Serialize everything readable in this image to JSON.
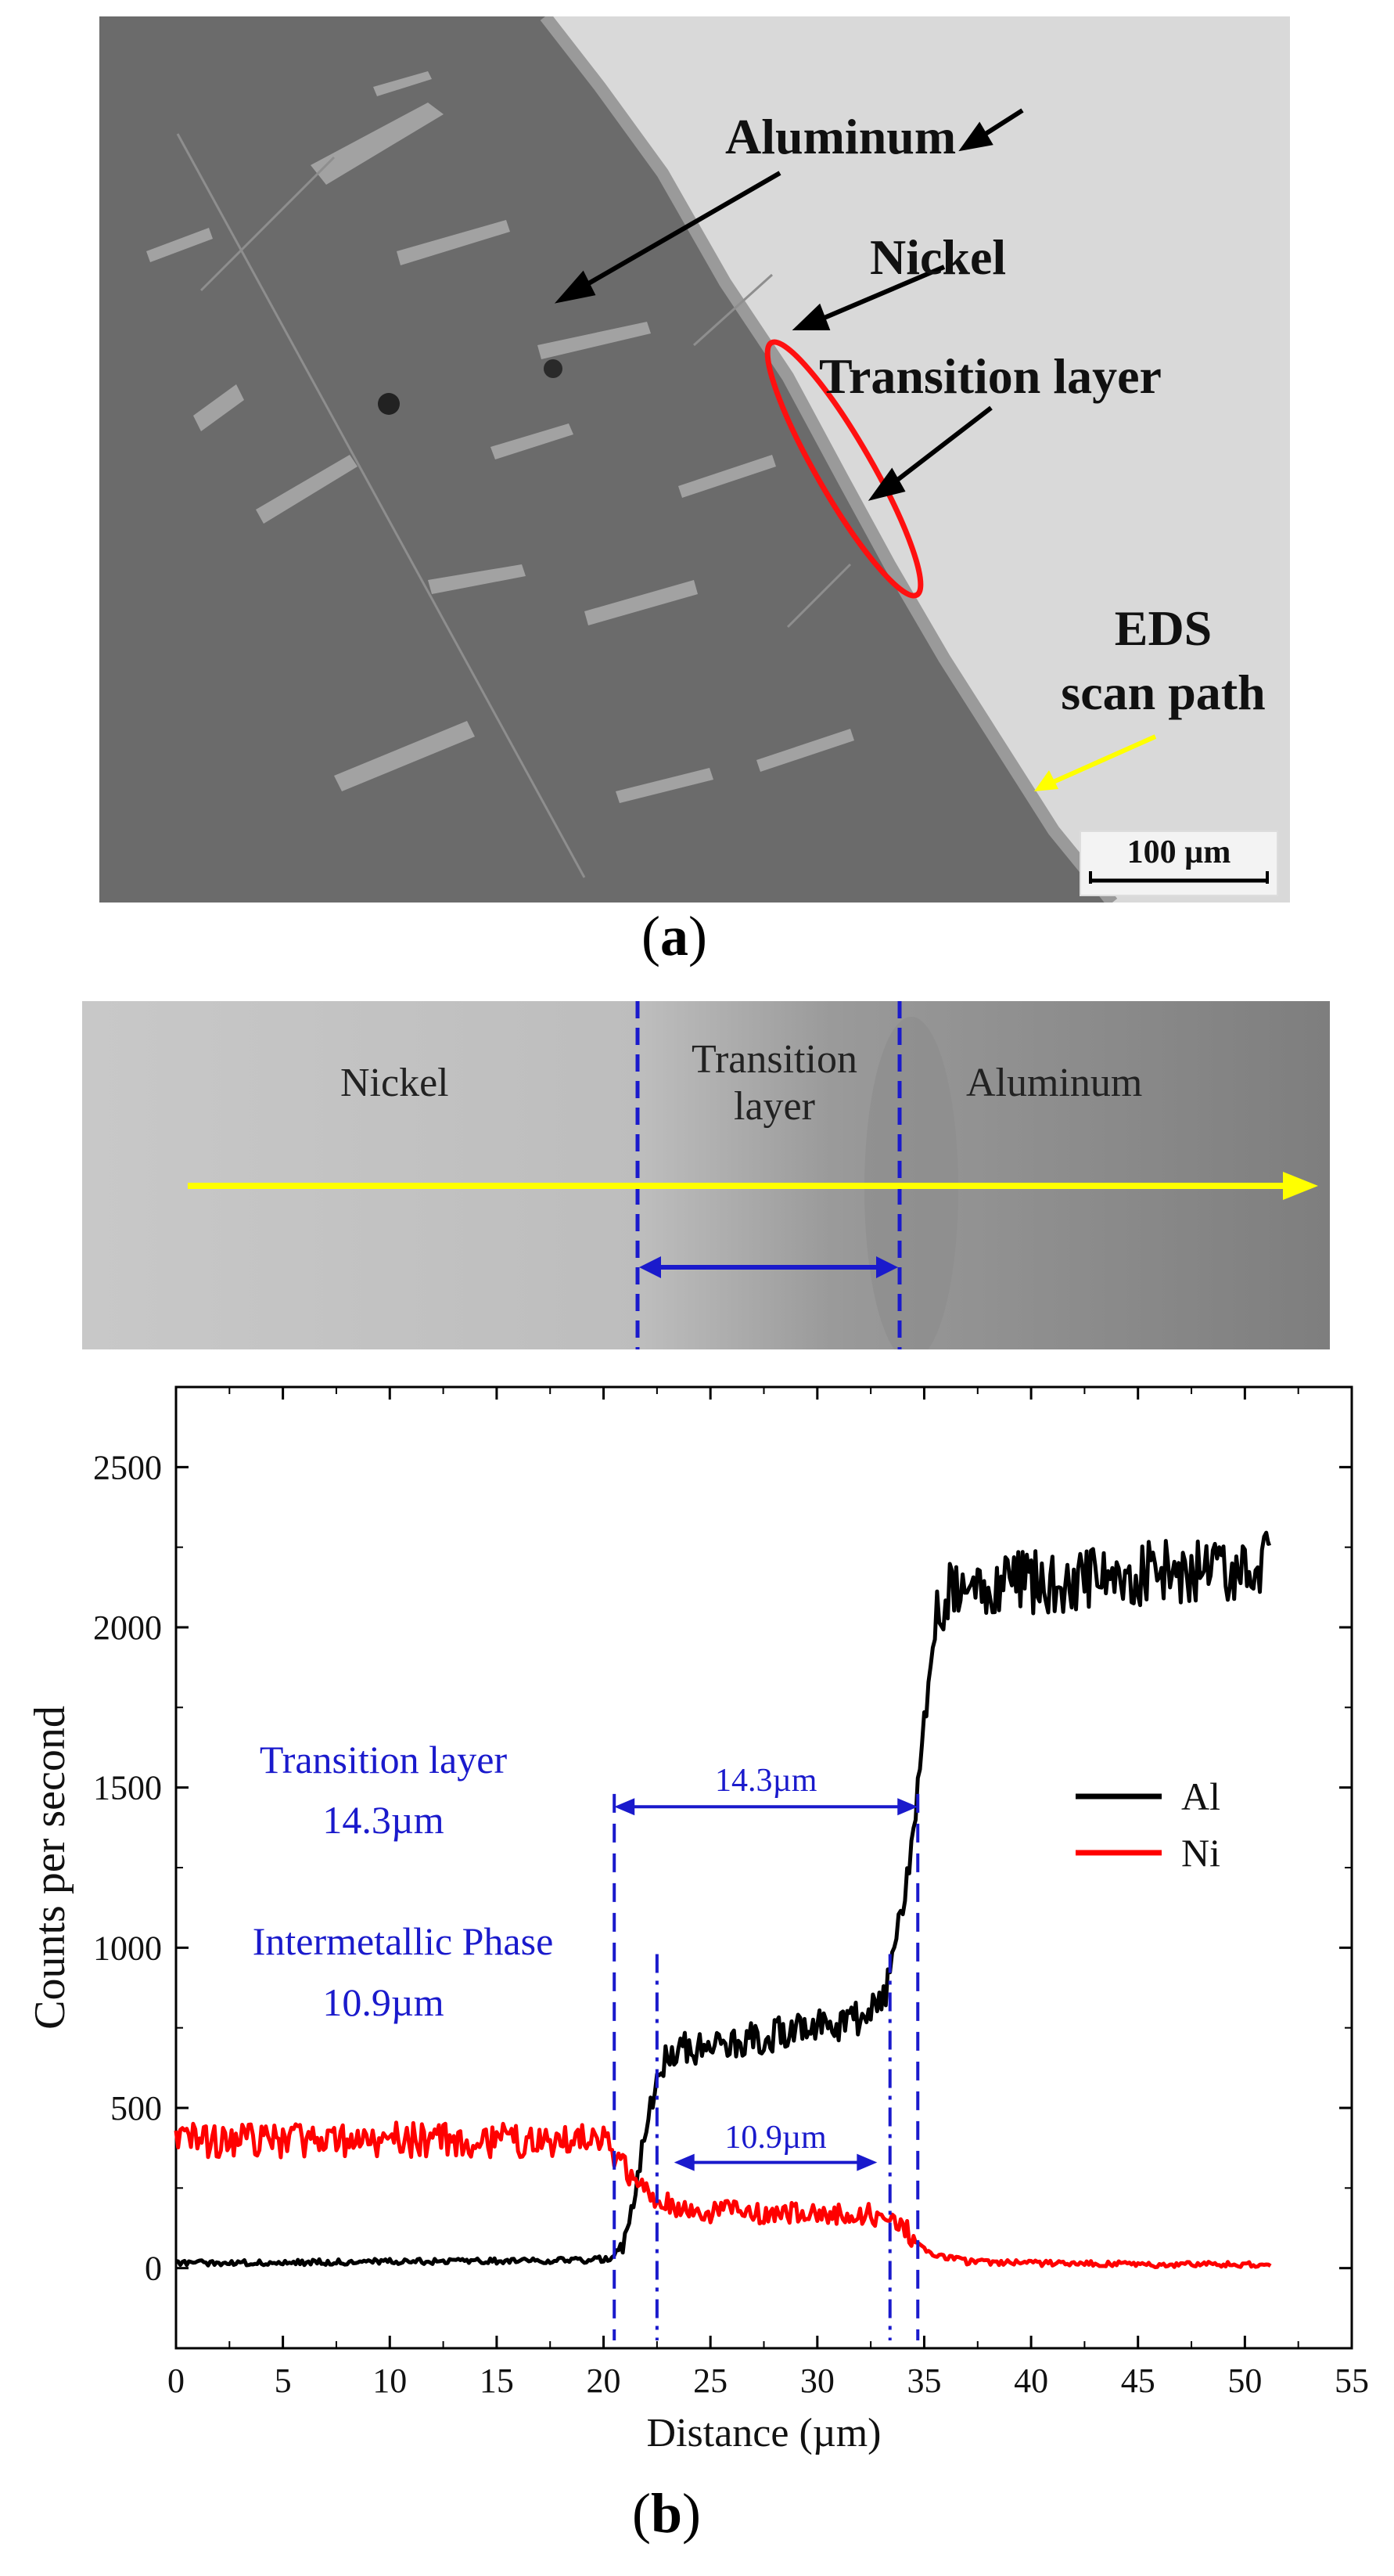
{
  "panel_a": {
    "labels": {
      "aluminum": "Aluminum",
      "nickel": "Nickel",
      "transition_layer": "Transition layer",
      "eds_line1": "EDS",
      "eds_line2": "scan path"
    },
    "scale_bar": "100 µm",
    "caption_open": "(",
    "caption_letter": "a",
    "caption_close": ")"
  },
  "panel_b_strip": {
    "nickel": "Nickel",
    "transition_line1": "Transition",
    "transition_line2": "layer",
    "aluminum": "Aluminum"
  },
  "colors": {
    "al_line": "#000000",
    "ni_line": "#ff0000",
    "annotation": "#1a1acc",
    "scan_arrow": "#ffff00",
    "ellipse": "#ff1010"
  },
  "chart_data": {
    "type": "line",
    "xlabel": "Distance (µm)",
    "ylabel": "Counts per second",
    "xlim": [
      0,
      55
    ],
    "ylim": [
      -250,
      2750
    ],
    "xticks": [
      0,
      5,
      10,
      15,
      20,
      25,
      30,
      35,
      40,
      45,
      50,
      55
    ],
    "yticks": [
      0,
      500,
      1000,
      1500,
      2000,
      2500
    ],
    "series": [
      {
        "name": "Al",
        "color": "#000000",
        "x": [
          0,
          5,
          10,
          15,
          19,
          20.3,
          21,
          21.5,
          22,
          22.5,
          23,
          24,
          25,
          27,
          29,
          31,
          32.5,
          33.3,
          33.8,
          34.3,
          34.7,
          35.1,
          35.5,
          36,
          36.6,
          37.5,
          40,
          43,
          46,
          49,
          51.3
        ],
        "values": [
          15,
          18,
          20,
          22,
          25,
          30,
          80,
          250,
          450,
          600,
          650,
          690,
          700,
          720,
          740,
          760,
          800,
          880,
          1050,
          1250,
          1500,
          1800,
          2000,
          2100,
          2150,
          2130,
          2140,
          2150,
          2170,
          2180,
          2200
        ]
      },
      {
        "name": "Ni",
        "color": "#ff0000",
        "x": [
          0,
          5,
          10,
          15,
          19,
          20,
          20.8,
          21.5,
          22.5,
          24,
          26,
          28,
          30,
          32,
          33.5,
          34.2,
          34.8,
          35.5,
          37,
          40,
          45,
          51.3
        ],
        "values": [
          395,
          400,
          400,
          400,
          405,
          390,
          340,
          280,
          210,
          180,
          175,
          170,
          175,
          170,
          160,
          120,
          70,
          40,
          20,
          15,
          12,
          10
        ]
      }
    ],
    "legend": {
      "position": "right",
      "entries": [
        "Al",
        "Ni"
      ]
    },
    "annotations": {
      "transition_title": "Transition layer",
      "transition_value": "14.3µm",
      "intermetallic_title": "Intermetallic Phase",
      "intermetallic_value": "10.9µm",
      "transition_span_label": "14.3µm",
      "transition_span": [
        20.5,
        34.7
      ],
      "intermetallic_span_label": "10.9µm",
      "intermetallic_span": [
        22.5,
        33.4
      ]
    },
    "caption_open": "(",
    "caption_letter": "b",
    "caption_close": ")"
  }
}
